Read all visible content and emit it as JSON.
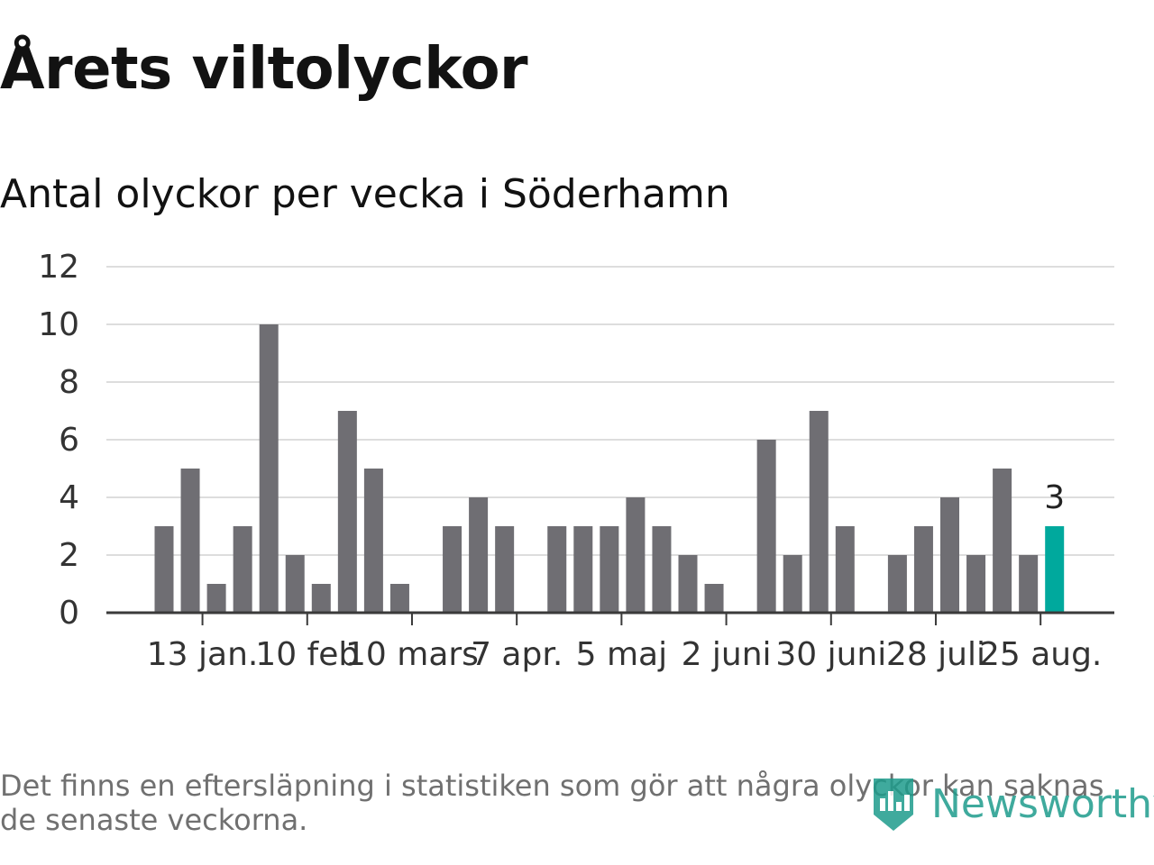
{
  "chart_data": {
    "type": "bar",
    "title": "Årets viltolyckor",
    "subtitle": "Antal olyckor per vecka i Söderhamn",
    "xlabel": "",
    "ylabel": "",
    "ylim": [
      0,
      12
    ],
    "yticks": [
      0,
      2,
      4,
      6,
      8,
      10,
      12
    ],
    "grid": true,
    "x_week_start_dates": [
      "2019-01-07",
      "2019-01-14",
      "2019-01-21",
      "2019-01-28",
      "2019-02-04",
      "2019-02-11",
      "2019-02-18",
      "2019-02-25",
      "2019-03-04",
      "2019-03-11",
      "2019-03-18",
      "2019-03-25",
      "2019-04-01",
      "2019-04-08",
      "2019-04-15",
      "2019-04-22",
      "2019-04-29",
      "2019-05-06",
      "2019-05-13",
      "2019-05-20",
      "2019-05-27",
      "2019-06-03",
      "2019-06-10",
      "2019-06-17",
      "2019-06-24",
      "2019-07-01",
      "2019-07-08",
      "2019-07-15",
      "2019-07-22",
      "2019-07-29",
      "2019-08-05",
      "2019-08-12",
      "2019-08-19",
      "2019-08-26",
      "2019-09-02"
    ],
    "values": [
      3,
      5,
      1,
      3,
      10,
      2,
      1,
      7,
      5,
      1,
      0,
      3,
      4,
      3,
      0,
      3,
      3,
      3,
      4,
      3,
      2,
      1,
      0,
      6,
      2,
      7,
      3,
      0,
      2,
      3,
      4,
      2,
      5,
      2,
      3
    ],
    "x_tick_labels": [
      "13 jan.",
      "10 feb",
      "10 mars",
      "7 apr.",
      "5 maj",
      "2 juni",
      "30 juni",
      "28 juli",
      "25 aug."
    ],
    "x_tick_positions_index": [
      1,
      5,
      9,
      13,
      17,
      21,
      25,
      29,
      33
    ],
    "highlight": {
      "index": 34,
      "label": "3",
      "color": "#00a99d"
    },
    "bar_color": "#6f6e73",
    "grid_color": "#dddddd",
    "axis_color": "#3a3a3a"
  },
  "footnote": "Det finns en eftersläpning i statistiken som gör att några olyckor kan saknas de senaste veckorna.",
  "logo": {
    "text": "Newsworthy",
    "icon": "bar-chart-pin-icon",
    "color": "#1e9c8c"
  }
}
